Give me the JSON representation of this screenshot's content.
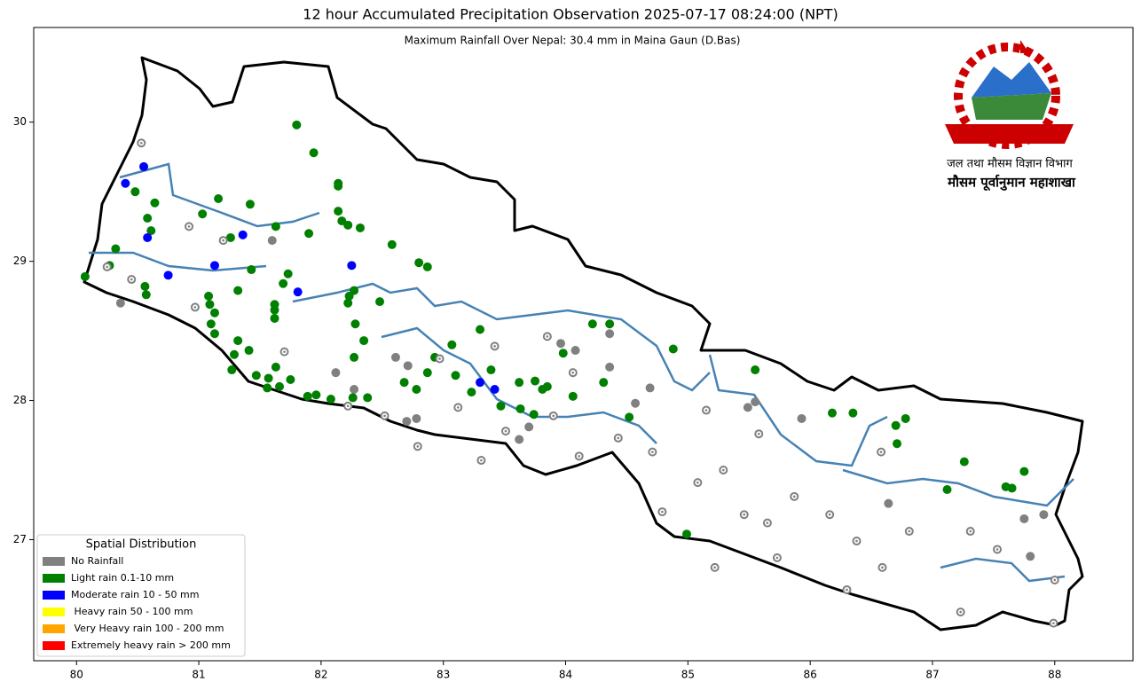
{
  "chart_data": {
    "type": "scatter",
    "title": "12 hour Accumulated Precipitation Observation 2025-07-17 08:24:00 (NPT)",
    "subtitle": "Maximum Rainfall Over Nepal: 30.4 mm in Maina Gaun (D.Bas)",
    "emblem_lines": [
      "जल तथा मौसम विज्ञान विभाग",
      "मौसम पूर्वानुमान महाशाखा"
    ],
    "legend_title": "Spatial Distribution",
    "legend_position": "lower left",
    "xlim": [
      79.65,
      88.64
    ],
    "ylim": [
      26.13,
      30.68
    ],
    "xticks": [
      80,
      81,
      82,
      83,
      84,
      85,
      86,
      87,
      88
    ],
    "yticks": [
      27,
      28,
      29,
      30
    ],
    "series": [
      {
        "name": "No Rainfall",
        "color": "#808080",
        "x": [
          80.36,
          81.6,
          82.12,
          82.27,
          82.61,
          82.71,
          82.7,
          82.78,
          83.7,
          83.96,
          84.08,
          84.36,
          84.36,
          84.57,
          84.69,
          85.55,
          85.49,
          85.93,
          86.64,
          87.75,
          87.91,
          87.8,
          83.62
        ],
        "values": [
          28.7,
          29.15,
          28.2,
          28.08,
          28.31,
          28.25,
          27.85,
          27.87,
          27.81,
          28.41,
          28.36,
          28.24,
          28.48,
          27.98,
          28.09,
          27.99,
          27.95,
          27.87,
          27.26,
          27.15,
          27.18,
          26.88,
          27.72
        ]
      },
      {
        "name": "Light rain 0.1-10 mm",
        "color": "#008000",
        "x": [
          80.07,
          80.32,
          80.27,
          80.48,
          80.58,
          80.64,
          80.61,
          80.56,
          80.57,
          81.08,
          81.09,
          81.13,
          81.1,
          81.13,
          81.03,
          81.16,
          81.42,
          81.26,
          81.32,
          81.43,
          81.32,
          81.41,
          81.29,
          81.27,
          81.47,
          81.56,
          81.66,
          81.75,
          81.57,
          81.63,
          81.62,
          81.62,
          81.62,
          81.63,
          81.69,
          81.73,
          81.8,
          81.94,
          81.9,
          81.89,
          81.96,
          82.08,
          82.14,
          82.14,
          82.14,
          82.17,
          82.22,
          82.32,
          82.27,
          82.26,
          82.38,
          82.23,
          82.22,
          82.27,
          82.28,
          82.35,
          82.48,
          82.58,
          82.8,
          82.87,
          82.68,
          82.78,
          82.93,
          82.87,
          83.1,
          83.07,
          83.3,
          83.23,
          83.39,
          83.47,
          83.62,
          83.75,
          83.85,
          83.81,
          83.74,
          83.63,
          83.98,
          84.06,
          84.22,
          84.36,
          84.31,
          84.52,
          84.88,
          85.55,
          86.18,
          86.35,
          86.7,
          86.78,
          86.71,
          87.26,
          87.12,
          87.75,
          87.6,
          87.65,
          84.99
        ],
        "values": [
          28.89,
          29.09,
          28.97,
          29.5,
          29.31,
          29.42,
          29.22,
          28.82,
          28.76,
          28.75,
          28.69,
          28.63,
          28.55,
          28.48,
          29.34,
          29.45,
          29.41,
          29.17,
          28.79,
          28.94,
          28.43,
          28.36,
          28.33,
          28.22,
          28.18,
          28.09,
          28.1,
          28.15,
          28.16,
          28.24,
          28.65,
          28.69,
          28.59,
          29.25,
          28.84,
          28.91,
          29.98,
          29.78,
          29.2,
          28.03,
          28.04,
          28.01,
          29.36,
          29.56,
          29.54,
          29.29,
          29.26,
          29.24,
          28.31,
          28.02,
          28.02,
          28.75,
          28.7,
          28.79,
          28.55,
          28.43,
          28.71,
          29.12,
          28.99,
          28.96,
          28.13,
          28.08,
          28.31,
          28.2,
          28.18,
          28.4,
          28.51,
          28.06,
          28.22,
          27.96,
          28.13,
          28.14,
          28.1,
          28.08,
          27.9,
          27.94,
          28.34,
          28.03,
          28.55,
          28.55,
          28.13,
          27.88,
          28.37,
          28.22,
          27.91,
          27.91,
          27.82,
          27.87,
          27.69,
          27.56,
          27.36,
          27.49,
          27.38,
          27.37,
          27.04
        ]
      },
      {
        "name": "Moderate rain 10 - 50 mm",
        "color": "#0000ff",
        "x": [
          80.55,
          80.4,
          80.58,
          80.75,
          81.13,
          81.36,
          81.81,
          82.25,
          83.3,
          83.42
        ],
        "values": [
          29.68,
          29.56,
          29.17,
          28.9,
          28.97,
          29.19,
          28.78,
          28.97,
          28.13,
          28.08
        ]
      },
      {
        "name": " Heavy rain 50 - 100 mm",
        "color": "#ffff00",
        "x": [],
        "values": []
      },
      {
        "name": " Very Heavy rain 100 - 200 mm",
        "color": "#ffa500",
        "x": [],
        "values": []
      },
      {
        "name": "Extremely heavy rain > 200 mm",
        "color": "#ff0000",
        "x": [],
        "values": []
      },
      {
        "color": "#808080",
        "marker": "ring",
        "x": [
          80.53,
          80.25,
          80.45,
          80.97,
          80.92,
          81.2,
          81.7,
          82.22,
          82.52,
          82.79,
          82.97,
          83.12,
          83.31,
          83.51,
          83.9,
          84.11,
          84.43,
          84.71,
          84.79,
          85.08,
          85.15,
          85.29,
          85.46,
          85.65,
          85.87,
          86.16,
          86.59,
          86.81,
          87.31,
          87.23,
          87.53,
          88.0,
          87.99,
          86.3,
          85.73,
          85.22,
          86.58,
          85.58,
          84.06,
          83.85,
          83.42,
          86.38
        ],
        "values": [
          29.85,
          28.96,
          28.87,
          28.67,
          29.25,
          29.15,
          28.35,
          27.96,
          27.89,
          27.67,
          28.3,
          27.95,
          27.57,
          27.78,
          27.89,
          27.6,
          27.73,
          27.63,
          27.2,
          27.41,
          27.93,
          27.5,
          27.18,
          27.12,
          27.31,
          27.18,
          26.8,
          27.06,
          27.06,
          26.48,
          26.93,
          26.71,
          26.4,
          26.64,
          26.87,
          26.8,
          27.63,
          27.76,
          28.2,
          28.46,
          28.39,
          26.99
        ]
      }
    ]
  }
}
